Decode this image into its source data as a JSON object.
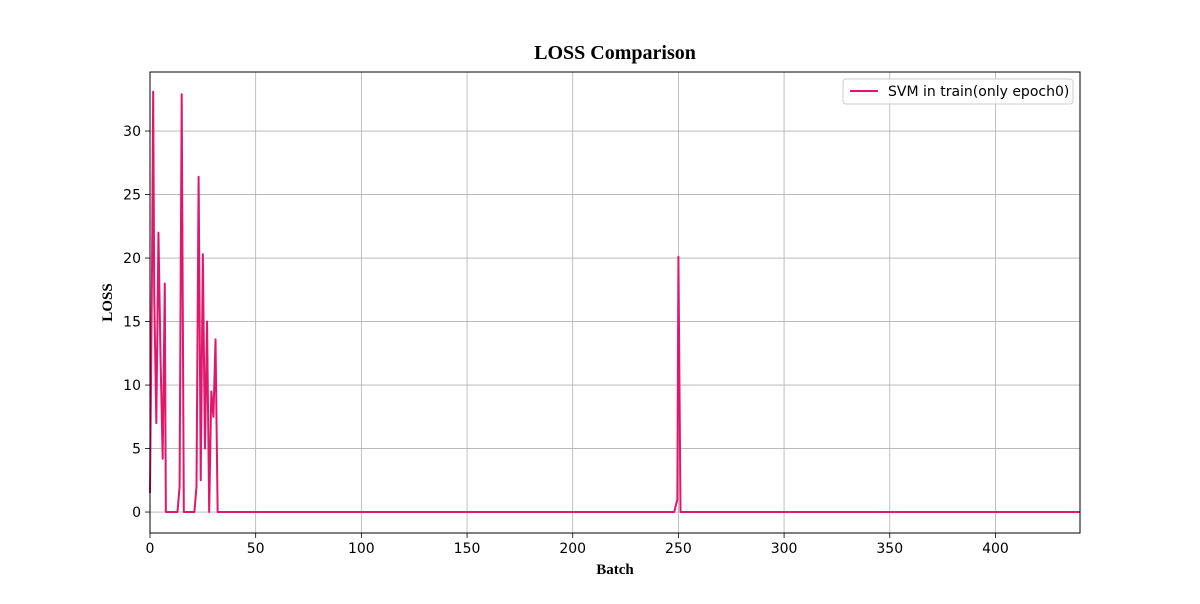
{
  "chart_data": {
    "type": "line",
    "title": "LOSS Comparison",
    "xlabel": "Batch",
    "ylabel": "LOSS",
    "xlim": [
      0,
      440
    ],
    "ylim": [
      -1.65,
      34.65
    ],
    "xticks": [
      0,
      50,
      100,
      150,
      200,
      250,
      300,
      350,
      400
    ],
    "yticks": [
      0,
      5,
      10,
      15,
      20,
      25,
      30
    ],
    "grid": true,
    "legend_position": "top-right",
    "series": [
      {
        "name": "SVM in train(only epoch0)",
        "color": "#e0176b",
        "points": [
          [
            0,
            1.5
          ],
          [
            1,
            20.0
          ],
          [
            1.5,
            33.1
          ],
          [
            2,
            17.0
          ],
          [
            3,
            7.0
          ],
          [
            4,
            22.0
          ],
          [
            5,
            12.0
          ],
          [
            6,
            4.2
          ],
          [
            7,
            18.0
          ],
          [
            7.5,
            0
          ],
          [
            8,
            0
          ],
          [
            13,
            0
          ],
          [
            14,
            2.0
          ],
          [
            15,
            32.9
          ],
          [
            16,
            0
          ],
          [
            21,
            0
          ],
          [
            22,
            2.0
          ],
          [
            23,
            26.4
          ],
          [
            23.5,
            15.0
          ],
          [
            24,
            2.5
          ],
          [
            25,
            20.3
          ],
          [
            26,
            5.0
          ],
          [
            27,
            15.0
          ],
          [
            28,
            0
          ],
          [
            29,
            9.5
          ],
          [
            30,
            7.5
          ],
          [
            31,
            13.6
          ],
          [
            32,
            0
          ],
          [
            33,
            0
          ],
          [
            248,
            0
          ],
          [
            249.5,
            1.0
          ],
          [
            250,
            20.1
          ],
          [
            251,
            0
          ],
          [
            440,
            0
          ]
        ]
      }
    ]
  }
}
